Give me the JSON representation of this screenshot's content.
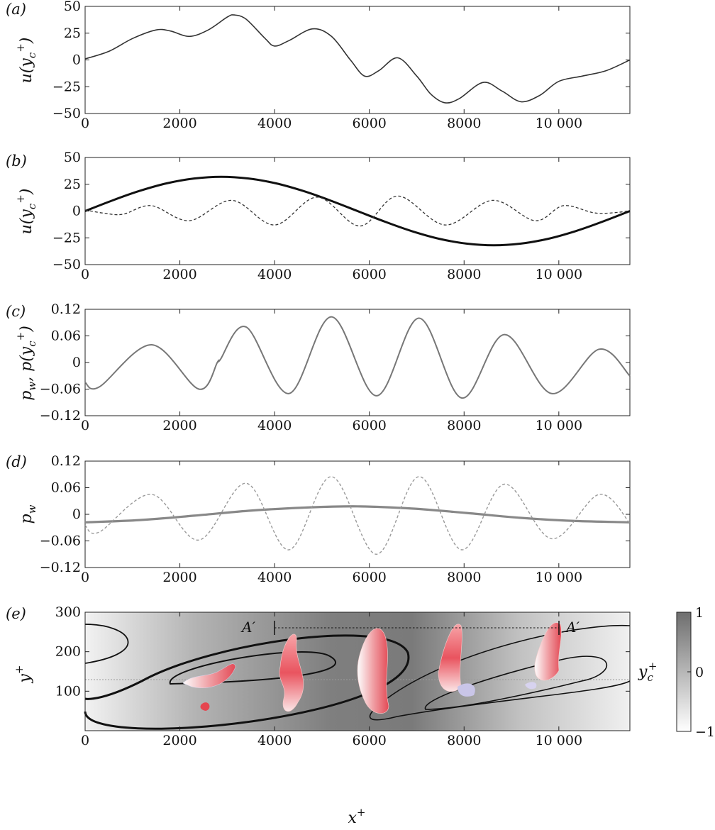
{
  "chart_data": [
    {
      "panel_label": "(a)",
      "type": "line",
      "ylabel": "u(y_c^+)",
      "xlim": [
        0,
        11500
      ],
      "ylim": [
        -50,
        50
      ],
      "xticks": [
        "0",
        "2000",
        "4000",
        "6000",
        "8000",
        "10 000"
      ],
      "yticks": [
        "50",
        "25",
        "0",
        "−25",
        "−50"
      ],
      "series": [
        {
          "style": "solid-dark",
          "x": [
            0,
            500,
            1000,
            1500,
            1800,
            2200,
            2600,
            3000,
            3150,
            3400,
            3800,
            4000,
            4300,
            4800,
            5200,
            5600,
            5900,
            6200,
            6600,
            7000,
            7300,
            7600,
            7900,
            8400,
            8800,
            9200,
            9600,
            10000,
            10500,
            11000,
            11500
          ],
          "y": [
            1,
            8,
            20,
            28,
            27,
            22,
            28,
            40,
            42,
            38,
            20,
            13,
            18,
            29,
            22,
            0,
            -15,
            -10,
            2,
            -15,
            -32,
            -40,
            -36,
            -21,
            -29,
            -39,
            -33,
            -20,
            -15,
            -10,
            0
          ]
        }
      ]
    },
    {
      "panel_label": "(b)",
      "type": "line",
      "ylabel": "u(y_c^+)",
      "xlim": [
        0,
        11500
      ],
      "ylim": [
        -50,
        50
      ],
      "xticks": [
        "0",
        "2000",
        "4000",
        "6000",
        "8000",
        "10 000"
      ],
      "yticks": [
        "50",
        "25",
        "0",
        "−25",
        "−50"
      ],
      "series": [
        {
          "style": "solid-thick",
          "x": [
            0,
            575,
            1150,
            1725,
            2300,
            2875,
            3450,
            4025,
            4600,
            5175,
            5750,
            6325,
            6900,
            7475,
            8050,
            8625,
            9200,
            9775,
            10350,
            10925,
            11500
          ],
          "y": [
            0,
            9.9,
            18.8,
            25.9,
            30.4,
            32,
            30.4,
            25.9,
            18.8,
            9.9,
            0,
            -9.9,
            -18.8,
            -25.9,
            -30.4,
            -32,
            -30.4,
            -25.9,
            -18.8,
            -9.9,
            0
          ]
        },
        {
          "style": "dashed",
          "x": [
            0,
            400,
            800,
            1400,
            2200,
            3100,
            4000,
            4900,
            5800,
            6600,
            7600,
            8600,
            9500,
            10100,
            10800,
            11500
          ],
          "y": [
            1,
            -2,
            -3,
            5,
            -9,
            10,
            -13,
            13,
            -14,
            14,
            -13,
            10,
            -9,
            5,
            -2,
            0
          ]
        }
      ]
    },
    {
      "panel_label": "(c)",
      "type": "line",
      "ylabel": "p_w, p(y_c^+)",
      "xlim": [
        0,
        11500
      ],
      "ylim": [
        -0.12,
        0.12
      ],
      "xticks": [
        "0",
        "2000",
        "4000",
        "6000",
        "8000",
        "10 000"
      ],
      "yticks": [
        "0.12",
        "0.06",
        "0",
        "−0.06",
        "−0.12"
      ],
      "series": [
        {
          "style": "solid-grey",
          "x": [
            0,
            300,
            1400,
            2400,
            2800,
            2850,
            3400,
            4300,
            5200,
            6150,
            7050,
            7950,
            8850,
            9850,
            10850,
            11500
          ],
          "y": [
            -0.045,
            -0.055,
            0.04,
            -0.06,
            0.002,
            0.006,
            0.08,
            -0.07,
            0.103,
            -0.075,
            0.1,
            -0.08,
            0.063,
            -0.07,
            0.03,
            -0.03
          ]
        }
      ]
    },
    {
      "panel_label": "(d)",
      "type": "line",
      "ylabel": "p_w",
      "xlim": [
        0,
        11500
      ],
      "ylim": [
        -0.12,
        0.12
      ],
      "xticks": [
        "0",
        "2000",
        "4000",
        "6000",
        "8000",
        "10 000"
      ],
      "yticks": [
        "0.12",
        "0.06",
        "0",
        "−0.06",
        "−0.12"
      ],
      "series": [
        {
          "style": "solid-grey-thick",
          "x": [
            0,
            1150,
            2300,
            3450,
            4600,
            5750,
            6900,
            8050,
            9200,
            10350,
            11500
          ],
          "y": [
            -0.018,
            -0.013,
            -0.003,
            0.008,
            0.015,
            0.018,
            0.013,
            0.003,
            -0.008,
            -0.015,
            -0.018
          ]
        },
        {
          "style": "dashed-grey",
          "x": [
            0,
            300,
            1400,
            2400,
            3400,
            4300,
            5200,
            6150,
            7050,
            7950,
            8850,
            9850,
            10850,
            11500
          ],
          "y": [
            -0.025,
            -0.04,
            0.045,
            -0.058,
            0.07,
            -0.08,
            0.085,
            -0.09,
            0.085,
            -0.08,
            0.068,
            -0.055,
            0.045,
            -0.02
          ]
        }
      ]
    },
    {
      "panel_label": "(e)",
      "type": "heatmap",
      "ylabel": "y^+",
      "xlabel": "x^+",
      "xlim": [
        0,
        11500
      ],
      "ylim": [
        0,
        300
      ],
      "xticks": [
        "0",
        "2000",
        "4000",
        "6000",
        "8000",
        "10 000"
      ],
      "yticks": [
        "300",
        "200",
        "100"
      ],
      "colorbar": {
        "label": "y_c^+",
        "ticks": [
          "1",
          "0",
          "−1"
        ]
      },
      "annotation": {
        "text": "A′",
        "x_start": 4000,
        "x_end": 10000,
        "y": 285
      },
      "reference_line_y": 110
    }
  ]
}
